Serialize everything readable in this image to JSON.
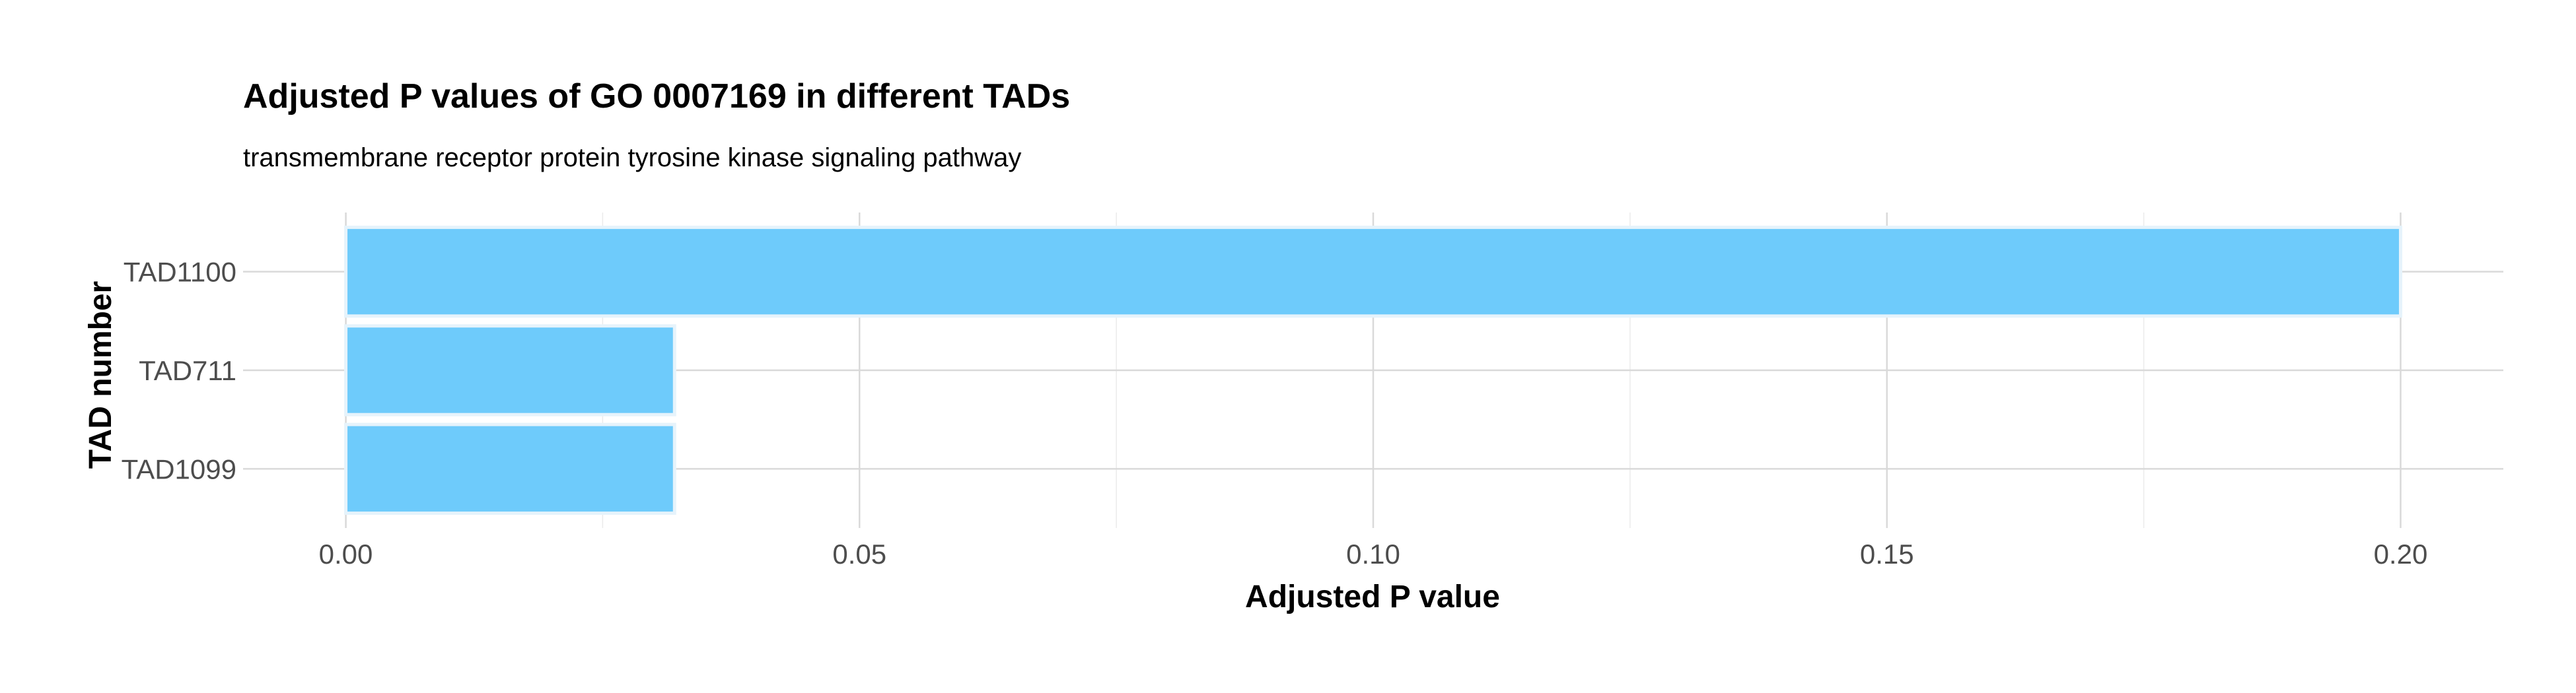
{
  "chart_data": {
    "type": "bar",
    "orientation": "horizontal",
    "title": "Adjusted P values of GO 0007169 in different TADs",
    "subtitle": "transmembrane receptor protein tyrosine kinase signaling pathway",
    "xlabel": "Adjusted P value",
    "ylabel": "TAD number",
    "categories": [
      "TAD1100",
      "TAD711",
      "TAD1099"
    ],
    "values": [
      0.2,
      0.032,
      0.032
    ],
    "xlim": [
      -0.01,
      0.21
    ],
    "xticks": [
      0.0,
      0.05,
      0.1,
      0.15,
      0.2
    ],
    "xtick_labels": [
      "0.00",
      "0.05",
      "0.10",
      "0.15",
      "0.20"
    ],
    "grid": true,
    "bar_color": "#6ecbfb",
    "bar_edge_color": "#e6f3fb"
  }
}
